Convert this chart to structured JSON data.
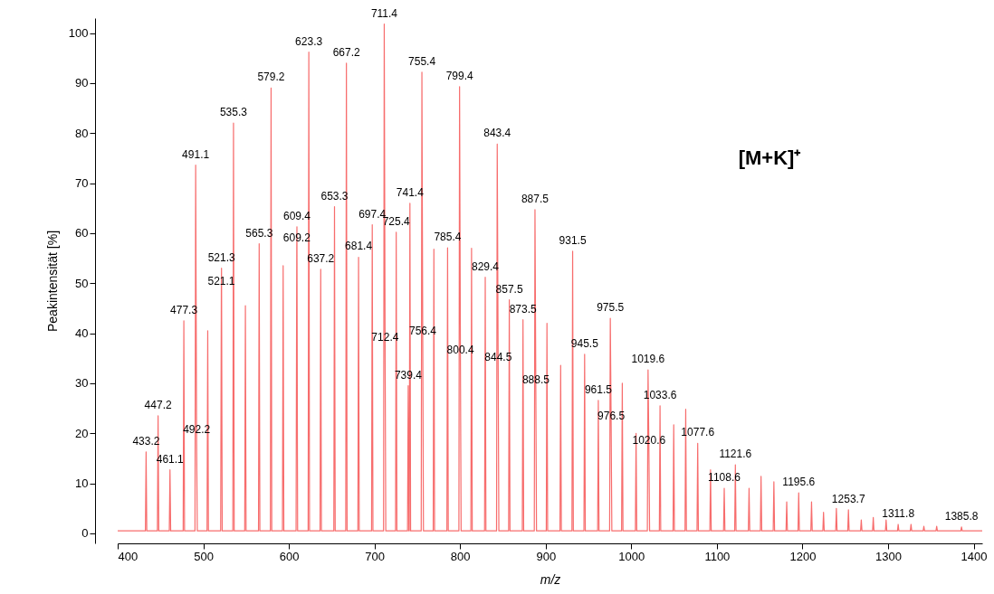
{
  "chart_data": {
    "type": "line",
    "xlabel": "m/z",
    "ylabel": "Peakintensität [%]",
    "xlim": [
      400,
      1410
    ],
    "xticks": [
      400,
      500,
      600,
      700,
      800,
      900,
      1000,
      1100,
      1200,
      1300,
      1400
    ],
    "ylim": [
      -2,
      103
    ],
    "yticks": [
      0,
      10,
      20,
      30,
      40,
      50,
      60,
      70,
      80,
      90,
      100
    ],
    "grid": false,
    "marker": "none",
    "line_style": "solid",
    "x": [
      400,
      432.4,
      433.2,
      434,
      446.4,
      447.2,
      448,
      460.3,
      461.1,
      461.9,
      476.5,
      477.3,
      478.1,
      490.3,
      491.1,
      492.2,
      493,
      504.4,
      505.2,
      506,
      520.3,
      521.1,
      521.3,
      522.1,
      534.5,
      535.3,
      536.1,
      548.4,
      549.2,
      550,
      564.5,
      565.3,
      566.1,
      578.4,
      579.2,
      580,
      592.5,
      593.3,
      594.1,
      608.4,
      609.2,
      609.4,
      610.2,
      622.5,
      623.3,
      624.1,
      636.4,
      637.2,
      638,
      652.5,
      653.3,
      654.1,
      666.4,
      667.2,
      668,
      680.6,
      681.4,
      682.2,
      696.6,
      697.4,
      698.2,
      710.6,
      711.4,
      712.4,
      713.2,
      724.6,
      725.4,
      726.2,
      738.6,
      739.4,
      740.2,
      740.6,
      741.4,
      742.2,
      754.6,
      755.4,
      756.4,
      757.2,
      768.6,
      769.4,
      770.2,
      784.6,
      785.4,
      786.2,
      798.6,
      799.4,
      800.4,
      801.2,
      812.6,
      813.4,
      814.2,
      828.6,
      829.4,
      830.2,
      842.6,
      843.4,
      844.5,
      845.3,
      856.7,
      857.5,
      858.3,
      872.7,
      873.5,
      874.3,
      886.7,
      887.5,
      888.5,
      889.3,
      900.7,
      901.5,
      902.3,
      916.7,
      917.5,
      918.3,
      930.7,
      931.5,
      932.3,
      944.7,
      945.5,
      946.3,
      960.7,
      961.5,
      962.3,
      974.7,
      975.5,
      976.5,
      977.3,
      988.7,
      989.5,
      990.3,
      1004.8,
      1005.6,
      1006.4,
      1018.8,
      1019.6,
      1020.6,
      1021.4,
      1032.8,
      1033.6,
      1034.4,
      1048.8,
      1049.6,
      1050.4,
      1062.8,
      1063.6,
      1064.4,
      1076.8,
      1077.6,
      1078.4,
      1091.8,
      1092.6,
      1093.4,
      1107.8,
      1108.6,
      1109.4,
      1120.8,
      1121.6,
      1122.4,
      1136.8,
      1137.6,
      1138.4,
      1150.8,
      1151.6,
      1152.4,
      1165.8,
      1166.6,
      1167.4,
      1180.8,
      1181.6,
      1182.4,
      1194.8,
      1195.6,
      1196.4,
      1209.8,
      1210.6,
      1211.4,
      1223.8,
      1224.6,
      1225.4,
      1238.8,
      1239.6,
      1240.4,
      1252.9,
      1253.7,
      1254.5,
      1267.9,
      1268.7,
      1269.5,
      1281.9,
      1282.7,
      1283.5,
      1296.9,
      1297.7,
      1298.5,
      1311,
      1311.8,
      1312.6,
      1326,
      1326.8,
      1327.6,
      1341,
      1341.8,
      1342.6,
      1356,
      1356.8,
      1357.6,
      1385,
      1385.8,
      1386.6,
      1410
    ],
    "series": [
      {
        "color": "#f76d6d",
        "values": [
          0.5,
          0.5,
          16.3,
          0.5,
          0.5,
          23.5,
          0.5,
          0.5,
          12.7,
          0.5,
          0.5,
          42.5,
          0.5,
          0.5,
          73.6,
          18.6,
          0.5,
          0.5,
          40.5,
          0.5,
          0.5,
          48.3,
          53,
          0.5,
          0.5,
          82,
          0.5,
          0.5,
          45.5,
          0.5,
          0.5,
          57.9,
          0.5,
          0.5,
          89,
          0.5,
          0.5,
          53.5,
          0.5,
          0.5,
          57,
          61.3,
          0.5,
          0.5,
          96.2,
          0.5,
          0.5,
          52.8,
          0.5,
          0.5,
          65.3,
          0.5,
          0.5,
          94,
          0.5,
          0.5,
          55.2,
          0.5,
          0.5,
          61.7,
          0.5,
          0.5,
          101.8,
          37,
          0.5,
          0.5,
          60.2,
          0.5,
          0.5,
          29.5,
          0.5,
          0.5,
          66,
          0.5,
          0.5,
          92.2,
          38.3,
          0.5,
          0.5,
          56.8,
          0.5,
          0.5,
          57.1,
          0.5,
          0.5,
          89.3,
          34.5,
          0.5,
          0.5,
          57,
          0.5,
          0.5,
          51.2,
          0.5,
          0.5,
          77.8,
          33,
          0.5,
          0.5,
          46.7,
          0.5,
          0.5,
          42.7,
          0.5,
          0.5,
          64.7,
          28.6,
          0.5,
          0.5,
          42,
          0.5,
          0.5,
          33.6,
          0.5,
          0.5,
          56.4,
          0.5,
          0.5,
          35.8,
          0.5,
          0.5,
          26.6,
          0.5,
          0.5,
          43,
          21.3,
          0.5,
          0.5,
          30,
          0.5,
          0.5,
          20,
          0.5,
          0.5,
          32.7,
          16.5,
          0.5,
          0.5,
          25.5,
          0.5,
          0.5,
          21.7,
          0.5,
          0.5,
          24.8,
          0.5,
          0.5,
          18,
          0.5,
          0.5,
          12.7,
          0.5,
          0.5,
          9,
          0.5,
          0.5,
          13.7,
          0.5,
          0.5,
          9,
          0.5,
          0.5,
          11.4,
          0.5,
          0.5,
          10.3,
          0.5,
          0.5,
          6.3,
          0.5,
          0.5,
          8.1,
          0.5,
          0.5,
          6.3,
          0.5,
          0.5,
          4.2,
          0.5,
          0.5,
          5,
          0.5,
          0.5,
          4.7,
          0.5,
          0.5,
          2.7,
          0.5,
          0.5,
          3.2,
          0.5,
          0.5,
          2.7,
          0.5,
          0.5,
          1.8,
          0.5,
          0.5,
          1.8,
          0.5,
          0.5,
          1.4,
          0.5,
          0.5,
          1.4,
          0.5,
          0.5,
          1.3,
          0.5,
          0.5
        ]
      }
    ],
    "annotations": [
      {
        "text": "433.2",
        "x": 433.2,
        "y": 16.3
      },
      {
        "text": "447.2",
        "x": 447.2,
        "y": 23.5
      },
      {
        "text": "461.1",
        "x": 461.1,
        "y": 12.7
      },
      {
        "text": "477.3",
        "x": 477.3,
        "y": 42.5
      },
      {
        "text": "491.1",
        "x": 491.1,
        "y": 73.6
      },
      {
        "text": "492.2",
        "x": 492.2,
        "y": 18.6
      },
      {
        "text": "521.1",
        "x": 521.1,
        "y": 48.3
      },
      {
        "text": "521.3",
        "x": 521.3,
        "y": 53
      },
      {
        "text": "535.3",
        "x": 535.3,
        "y": 82
      },
      {
        "text": "565.3",
        "x": 565.3,
        "y": 57.9
      },
      {
        "text": "579.2",
        "x": 579.2,
        "y": 89
      },
      {
        "text": "609.2",
        "x": 609.2,
        "y": 57
      },
      {
        "text": "609.4",
        "x": 609.4,
        "y": 61.3
      },
      {
        "text": "623.3",
        "x": 623.3,
        "y": 96.2
      },
      {
        "text": "637.2",
        "x": 637.2,
        "y": 52.8
      },
      {
        "text": "653.3",
        "x": 653.3,
        "y": 65.3
      },
      {
        "text": "667.2",
        "x": 667.2,
        "y": 94
      },
      {
        "text": "681.4",
        "x": 681.4,
        "y": 55.2
      },
      {
        "text": "697.4",
        "x": 697.4,
        "y": 61.7
      },
      {
        "text": "711.4",
        "x": 711.4,
        "y": 101.8
      },
      {
        "text": "712.4",
        "x": 712.4,
        "y": 37
      },
      {
        "text": "725.4",
        "x": 725.4,
        "y": 60.2
      },
      {
        "text": "739.4",
        "x": 739.4,
        "y": 29.5
      },
      {
        "text": "741.4",
        "x": 741.4,
        "y": 66
      },
      {
        "text": "755.4",
        "x": 755.4,
        "y": 92.2
      },
      {
        "text": "756.4",
        "x": 756.4,
        "y": 38.3
      },
      {
        "text": "785.4",
        "x": 785.4,
        "y": 57.1
      },
      {
        "text": "799.4",
        "x": 799.4,
        "y": 89.3
      },
      {
        "text": "800.4",
        "x": 800.4,
        "y": 34.5
      },
      {
        "text": "829.4",
        "x": 829.4,
        "y": 51.2
      },
      {
        "text": "843.4",
        "x": 843.4,
        "y": 77.8
      },
      {
        "text": "844.5",
        "x": 844.5,
        "y": 33
      },
      {
        "text": "857.5",
        "x": 857.5,
        "y": 46.7
      },
      {
        "text": "873.5",
        "x": 873.5,
        "y": 42.7
      },
      {
        "text": "887.5",
        "x": 887.5,
        "y": 64.7
      },
      {
        "text": "888.5",
        "x": 888.5,
        "y": 28.6
      },
      {
        "text": "931.5",
        "x": 931.5,
        "y": 56.4
      },
      {
        "text": "945.5",
        "x": 945.5,
        "y": 35.8
      },
      {
        "text": "961.5",
        "x": 961.5,
        "y": 26.6
      },
      {
        "text": "975.5",
        "x": 975.5,
        "y": 43
      },
      {
        "text": "976.5",
        "x": 976.5,
        "y": 21.3
      },
      {
        "text": "1019.6",
        "x": 1019.6,
        "y": 32.7
      },
      {
        "text": "1020.6",
        "x": 1020.6,
        "y": 16.5
      },
      {
        "text": "1033.6",
        "x": 1033.6,
        "y": 25.5
      },
      {
        "text": "1077.6",
        "x": 1077.6,
        "y": 18
      },
      {
        "text": "1108.6",
        "x": 1108.6,
        "y": 9
      },
      {
        "text": "1121.6",
        "x": 1121.6,
        "y": 13.7
      },
      {
        "text": "1195.6",
        "x": 1195.6,
        "y": 8.1
      },
      {
        "text": "1253.7",
        "x": 1253.7,
        "y": 4.7
      },
      {
        "text": "1311.8",
        "x": 1311.8,
        "y": 1.8
      },
      {
        "text": "1385.8",
        "x": 1385.8,
        "y": 1.3
      },
      "[M+K]⁺"
    ]
  }
}
